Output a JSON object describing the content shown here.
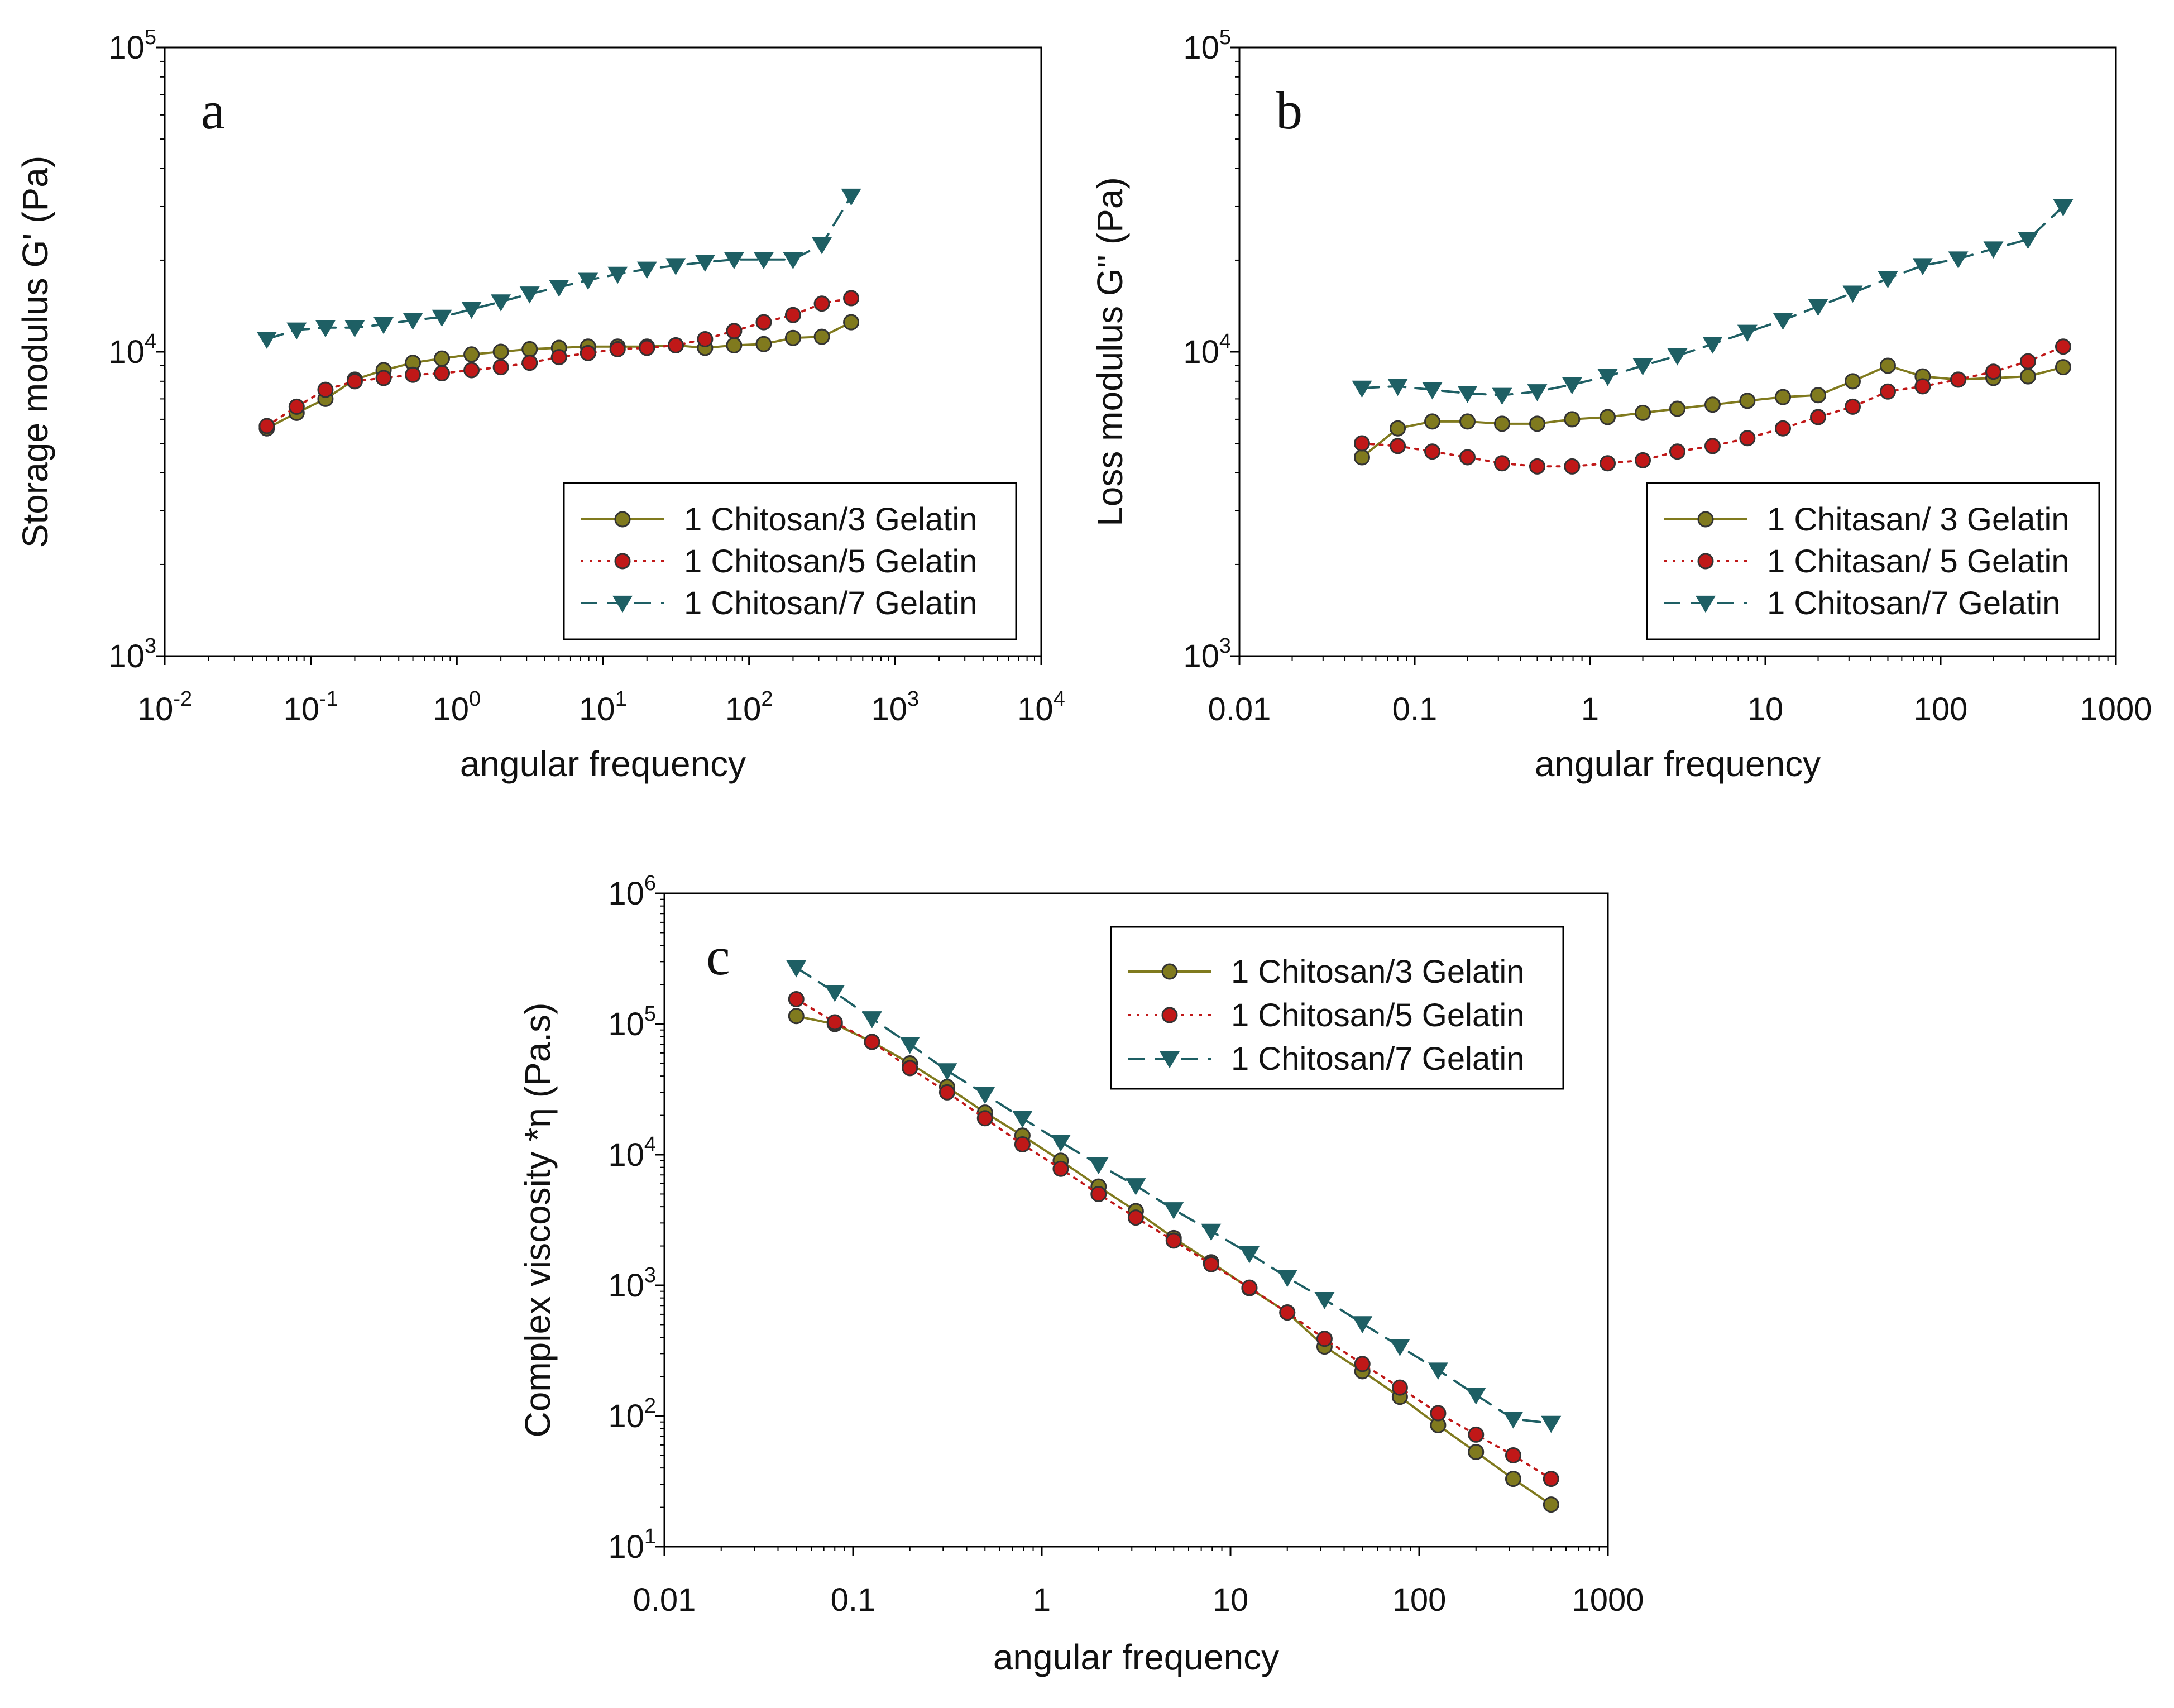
{
  "chart_data": [
    {
      "type": "line",
      "panel_label": "a",
      "xlabel": "angular frequency",
      "ylabel": "Storage modulus G' (Pa)",
      "xscale": "log",
      "yscale": "log",
      "xlim": [
        0.01,
        10000
      ],
      "ylim": [
        1000,
        100000
      ],
      "xticks": [
        {
          "value": 0.01,
          "base": "10",
          "exp": "-2"
        },
        {
          "value": 0.1,
          "base": "10",
          "exp": "-1"
        },
        {
          "value": 1,
          "base": "10",
          "exp": "0"
        },
        {
          "value": 10,
          "base": "10",
          "exp": "1"
        },
        {
          "value": 100,
          "base": "10",
          "exp": "2"
        },
        {
          "value": 1000,
          "base": "10",
          "exp": "3"
        },
        {
          "value": 10000,
          "base": "10",
          "exp": "4"
        }
      ],
      "yticks": [
        {
          "value": 1000,
          "base": "10",
          "exp": "3"
        },
        {
          "value": 10000,
          "base": "10",
          "exp": "4"
        },
        {
          "value": 100000,
          "base": "10",
          "exp": "5"
        }
      ],
      "legend_position": "bottom-right",
      "x": [
        0.05,
        0.08,
        0.126,
        0.2,
        0.315,
        0.5,
        0.79,
        1.26,
        2,
        3.15,
        5,
        7.9,
        12.6,
        20,
        31.5,
        50,
        79,
        126,
        200,
        315,
        500
      ],
      "series": [
        {
          "name": "1 Chitosan/3 Gelatin",
          "color": "#807a1e",
          "marker": "circle",
          "dash": "solid",
          "values": [
            5600,
            6300,
            7000,
            8100,
            8700,
            9200,
            9500,
            9800,
            10000,
            10200,
            10300,
            10400,
            10400,
            10400,
            10500,
            10300,
            10500,
            10600,
            11100,
            11200,
            12500
          ]
        },
        {
          "name": "1 Chitosan/5 Gelatin",
          "color": "#c01818",
          "marker": "circle",
          "dash": "dot",
          "values": [
            5700,
            6600,
            7500,
            8000,
            8200,
            8400,
            8500,
            8700,
            8900,
            9200,
            9600,
            9900,
            10200,
            10300,
            10500,
            11000,
            11700,
            12500,
            13200,
            14400,
            15000
          ]
        },
        {
          "name": "1 Chitosan/7 Gelatin",
          "color": "#1e5f64",
          "marker": "triangle-down",
          "dash": "dash",
          "values": [
            11000,
            11800,
            12000,
            12000,
            12300,
            12700,
            13000,
            13800,
            14600,
            15500,
            16300,
            17200,
            18000,
            18700,
            19200,
            19700,
            20100,
            20100,
            20100,
            22500,
            32500
          ]
        }
      ]
    },
    {
      "type": "line",
      "panel_label": "b",
      "xlabel": "angular frequency",
      "ylabel": "Loss modulus G'' (Pa)",
      "xscale": "log",
      "yscale": "log",
      "xlim": [
        0.01,
        1000
      ],
      "ylim": [
        1000,
        100000
      ],
      "xticks": [
        {
          "value": 0.01,
          "label": "0.01"
        },
        {
          "value": 0.1,
          "label": "0.1"
        },
        {
          "value": 1,
          "label": "1"
        },
        {
          "value": 10,
          "label": "10"
        },
        {
          "value": 100,
          "label": "100"
        },
        {
          "value": 1000,
          "label": "1000"
        }
      ],
      "yticks": [
        {
          "value": 1000,
          "base": "10",
          "exp": "3"
        },
        {
          "value": 10000,
          "base": "10",
          "exp": "4"
        },
        {
          "value": 100000,
          "base": "10",
          "exp": "5"
        }
      ],
      "legend_position": "bottom-right",
      "x": [
        0.05,
        0.08,
        0.126,
        0.2,
        0.315,
        0.5,
        0.79,
        1.26,
        2,
        3.15,
        5,
        7.9,
        12.6,
        20,
        31.5,
        50,
        79,
        126,
        200,
        315,
        500
      ],
      "series": [
        {
          "name": "1 Chitasan/ 3 Gelatin",
          "color": "#807a1e",
          "marker": "circle",
          "dash": "solid",
          "values": [
            4500,
            5600,
            5900,
            5900,
            5800,
            5800,
            6000,
            6100,
            6300,
            6500,
            6700,
            6900,
            7100,
            7200,
            8000,
            9000,
            8300,
            8100,
            8200,
            8300,
            8900
          ]
        },
        {
          "name": "1 Chitasan/ 5 Gelatin",
          "color": "#c01818",
          "marker": "circle",
          "dash": "dot",
          "values": [
            5000,
            4900,
            4700,
            4500,
            4300,
            4200,
            4200,
            4300,
            4400,
            4700,
            4900,
            5200,
            5600,
            6100,
            6600,
            7400,
            7700,
            8100,
            8600,
            9300,
            10400
          ]
        },
        {
          "name": "1 Chitosan/7 Gelatin",
          "color": "#1e5f64",
          "marker": "triangle-down",
          "dash": "dash",
          "values": [
            7600,
            7700,
            7500,
            7300,
            7200,
            7400,
            7800,
            8300,
            9000,
            9700,
            10600,
            11600,
            12700,
            14100,
            15600,
            17400,
            19200,
            20200,
            21800,
            23400,
            30000
          ]
        }
      ]
    },
    {
      "type": "line",
      "panel_label": "c",
      "xlabel": "angular frequency",
      "ylabel": "Complex viscosity *η (Pa.s)",
      "xscale": "log",
      "yscale": "log",
      "xlim": [
        0.01,
        1000
      ],
      "ylim": [
        10,
        1000000
      ],
      "xticks": [
        {
          "value": 0.01,
          "label": "0.01"
        },
        {
          "value": 0.1,
          "label": "0.1"
        },
        {
          "value": 1,
          "label": "1"
        },
        {
          "value": 10,
          "label": "10"
        },
        {
          "value": 100,
          "label": "100"
        },
        {
          "value": 1000,
          "label": "1000"
        }
      ],
      "yticks": [
        {
          "value": 10,
          "base": "10",
          "exp": "1"
        },
        {
          "value": 100,
          "base": "10",
          "exp": "2"
        },
        {
          "value": 1000,
          "base": "10",
          "exp": "3"
        },
        {
          "value": 10000,
          "base": "10",
          "exp": "4"
        },
        {
          "value": 100000,
          "base": "10",
          "exp": "5"
        },
        {
          "value": 1000000,
          "base": "10",
          "exp": "6"
        }
      ],
      "legend_position": "top-right",
      "x": [
        0.05,
        0.08,
        0.126,
        0.2,
        0.315,
        0.5,
        0.79,
        1.26,
        2,
        3.15,
        5,
        7.9,
        12.6,
        20,
        31.5,
        50,
        79,
        126,
        200,
        315,
        500
      ],
      "series": [
        {
          "name": "1 Chitosan/3 Gelatin",
          "color": "#807a1e",
          "marker": "circle",
          "dash": "solid",
          "values": [
            115000,
            100000,
            73000,
            50000,
            33000,
            21000,
            14000,
            9000,
            5700,
            3700,
            2300,
            1500,
            950,
            620,
            340,
            220,
            140,
            85,
            53,
            33,
            21
          ]
        },
        {
          "name": "1 Chitosan/5 Gelatin",
          "color": "#c01818",
          "marker": "circle",
          "dash": "dot",
          "values": [
            155000,
            103000,
            73000,
            46000,
            30000,
            19000,
            12000,
            7800,
            5000,
            3300,
            2200,
            1450,
            960,
            620,
            390,
            250,
            165,
            105,
            72,
            50,
            33
          ]
        },
        {
          "name": "1 Chitosan/7 Gelatin",
          "color": "#1e5f64",
          "marker": "triangle-down",
          "dash": "dash",
          "values": [
            270000,
            175000,
            110000,
            70000,
            44000,
            29000,
            19000,
            12500,
            8400,
            5800,
            3800,
            2600,
            1750,
            1150,
            780,
            510,
            340,
            225,
            145,
            95,
            88
          ]
        }
      ]
    }
  ]
}
